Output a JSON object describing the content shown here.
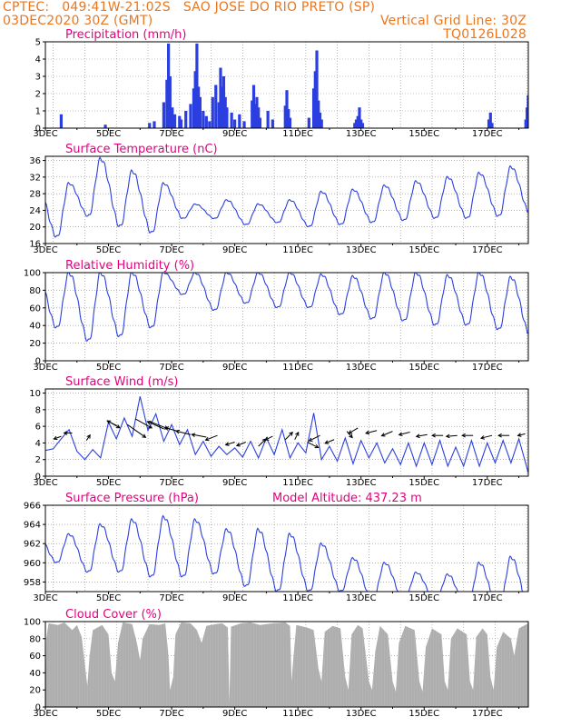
{
  "header": {
    "line1": "CPTEC:   049:41W-21:02S   SAO JOSE DO RIO PRETO (SP)",
    "line2": "03DEC2020 30Z (GMT)",
    "grid_note": "Vertical Grid Line: 30Z",
    "code": "TQ0126L028"
  },
  "colors": {
    "header": "#e87722",
    "title": "#e6007e",
    "line": "#2b3fe0",
    "cloud": "#a9a9a9"
  },
  "x_labels": [
    "3DEC",
    "5DEC",
    "7DEC",
    "9DEC",
    "11DEC",
    "13DEC",
    "15DEC",
    "17DEC"
  ],
  "chart_data": [
    {
      "type": "bar",
      "title": "Precipitation (mm/h)",
      "ylim": [
        0,
        5
      ],
      "yticks": [
        0,
        1,
        2,
        3,
        4,
        5
      ],
      "x_range_days": [
        3,
        18.3
      ],
      "bars": [
        [
          3.5,
          0.8
        ],
        [
          4.9,
          0.2
        ],
        [
          6.3,
          0.3
        ],
        [
          6.45,
          0.4
        ],
        [
          6.75,
          1.5
        ],
        [
          6.85,
          2.8
        ],
        [
          6.9,
          4.9
        ],
        [
          6.95,
          3.0
        ],
        [
          7.02,
          1.2
        ],
        [
          7.1,
          0.8
        ],
        [
          7.25,
          0.7
        ],
        [
          7.3,
          0.5
        ],
        [
          7.45,
          1.0
        ],
        [
          7.6,
          1.4
        ],
        [
          7.7,
          2.3
        ],
        [
          7.75,
          3.3
        ],
        [
          7.8,
          4.9
        ],
        [
          7.85,
          2.4
        ],
        [
          7.9,
          1.8
        ],
        [
          8.0,
          1.0
        ],
        [
          8.1,
          0.7
        ],
        [
          8.2,
          0.4
        ],
        [
          8.3,
          1.8
        ],
        [
          8.4,
          2.5
        ],
        [
          8.5,
          1.5
        ],
        [
          8.55,
          3.5
        ],
        [
          8.6,
          2.4
        ],
        [
          8.65,
          3.0
        ],
        [
          8.7,
          1.8
        ],
        [
          8.75,
          1.2
        ],
        [
          8.9,
          0.9
        ],
        [
          9.0,
          0.5
        ],
        [
          9.15,
          0.8
        ],
        [
          9.3,
          0.4
        ],
        [
          9.55,
          1.6
        ],
        [
          9.6,
          2.5
        ],
        [
          9.65,
          1.4
        ],
        [
          9.7,
          1.8
        ],
        [
          9.75,
          1.2
        ],
        [
          9.8,
          0.6
        ],
        [
          10.05,
          1.0
        ],
        [
          10.2,
          0.5
        ],
        [
          10.6,
          1.3
        ],
        [
          10.65,
          2.2
        ],
        [
          10.7,
          1.1
        ],
        [
          10.75,
          0.6
        ],
        [
          11.35,
          0.6
        ],
        [
          11.5,
          2.3
        ],
        [
          11.55,
          3.3
        ],
        [
          11.6,
          4.5
        ],
        [
          11.65,
          1.6
        ],
        [
          11.7,
          0.9
        ],
        [
          11.75,
          0.5
        ],
        [
          12.8,
          0.3
        ],
        [
          12.85,
          0.5
        ],
        [
          12.9,
          0.7
        ],
        [
          12.95,
          1.2
        ],
        [
          13.0,
          0.5
        ],
        [
          13.05,
          0.3
        ],
        [
          17.05,
          0.5
        ],
        [
          17.1,
          0.9
        ],
        [
          17.15,
          0.3
        ],
        [
          18.22,
          0.5
        ],
        [
          18.26,
          1.2
        ],
        [
          18.3,
          1.9
        ]
      ]
    },
    {
      "type": "line",
      "title": "Surface Temperature (nC)",
      "ylim": [
        16,
        37
      ],
      "yticks": [
        16,
        20,
        24,
        28,
        32,
        36
      ],
      "x_range_days": [
        3,
        18.3
      ],
      "max": [
        30.5,
        36.5,
        33.5,
        30.5,
        25.5,
        26.5,
        25.5,
        26.5,
        28.5,
        29,
        30,
        31,
        32,
        33,
        34.5,
        36.5,
        36.5
      ],
      "min": [
        17.5,
        22.5,
        20,
        18.5,
        22,
        22,
        20.5,
        21,
        20,
        20.5,
        21,
        21.5,
        22,
        22,
        22.5,
        23,
        23
      ]
    },
    {
      "type": "line",
      "title": "Relative Humidity (%)",
      "ylim": [
        0,
        100
      ],
      "yticks": [
        0,
        20,
        40,
        60,
        80,
        100
      ],
      "x_range_days": [
        3,
        18.3
      ],
      "max": [
        100,
        100,
        100,
        100,
        100,
        100,
        100,
        100,
        98,
        96,
        100,
        100,
        97,
        100,
        95,
        100,
        100
      ],
      "min": [
        37,
        22,
        27,
        37,
        75,
        57,
        65,
        60,
        60,
        52,
        47,
        45,
        40,
        40,
        35,
        28,
        28
      ]
    },
    {
      "type": "line",
      "title": "Surface Wind (m/s)",
      "ylim": [
        0,
        10.5
      ],
      "yticks": [
        0,
        2,
        4,
        6,
        8,
        10
      ],
      "x_range_days": [
        3,
        18.3
      ],
      "values": [
        [
          3.0,
          3.1
        ],
        [
          3.25,
          3.3
        ],
        [
          3.5,
          4.5
        ],
        [
          3.75,
          5.6
        ],
        [
          4.0,
          3.0
        ],
        [
          4.25,
          2.0
        ],
        [
          4.5,
          3.2
        ],
        [
          4.75,
          2.2
        ],
        [
          5.0,
          6.5
        ],
        [
          5.25,
          4.5
        ],
        [
          5.5,
          7.0
        ],
        [
          5.75,
          4.8
        ],
        [
          6.0,
          9.6
        ],
        [
          6.25,
          5.5
        ],
        [
          6.5,
          7.5
        ],
        [
          6.75,
          4.2
        ],
        [
          7.0,
          6.2
        ],
        [
          7.25,
          3.8
        ],
        [
          7.5,
          5.6
        ],
        [
          7.75,
          2.6
        ],
        [
          8.0,
          4.2
        ],
        [
          8.25,
          2.4
        ],
        [
          8.5,
          3.6
        ],
        [
          8.75,
          2.6
        ],
        [
          9.0,
          3.4
        ],
        [
          9.25,
          2.3
        ],
        [
          9.5,
          4.2
        ],
        [
          9.75,
          2.2
        ],
        [
          10.0,
          4.6
        ],
        [
          10.25,
          2.6
        ],
        [
          10.5,
          5.6
        ],
        [
          10.75,
          2.2
        ],
        [
          11.0,
          4.0
        ],
        [
          11.25,
          2.8
        ],
        [
          11.5,
          7.6
        ],
        [
          11.75,
          2.0
        ],
        [
          12.0,
          3.6
        ],
        [
          12.25,
          1.8
        ],
        [
          12.5,
          4.6
        ],
        [
          12.75,
          1.5
        ],
        [
          13.0,
          4.3
        ],
        [
          13.25,
          2.2
        ],
        [
          13.5,
          4.0
        ],
        [
          13.75,
          1.6
        ],
        [
          14.0,
          3.3
        ],
        [
          14.25,
          1.4
        ],
        [
          14.5,
          4.0
        ],
        [
          14.75,
          1.2
        ],
        [
          15.0,
          4.0
        ],
        [
          15.25,
          1.4
        ],
        [
          15.5,
          4.3
        ],
        [
          15.75,
          1.2
        ],
        [
          16.0,
          3.5
        ],
        [
          16.25,
          1.2
        ],
        [
          16.5,
          4.3
        ],
        [
          16.75,
          1.2
        ],
        [
          17.0,
          4.0
        ],
        [
          17.25,
          1.6
        ],
        [
          17.5,
          4.3
        ],
        [
          17.75,
          1.6
        ],
        [
          18.0,
          4.5
        ],
        [
          18.3,
          0.4
        ]
      ],
      "arrows": [
        [
          3.5,
          4.8,
          -8,
          3
        ],
        [
          3.85,
          5.2,
          -9,
          0
        ],
        [
          4.3,
          4.3,
          4,
          -6
        ],
        [
          4.95,
          6.7,
          14,
          8
        ],
        [
          5.25,
          6.1,
          -10,
          -5
        ],
        [
          5.6,
          6.2,
          20,
          14
        ],
        [
          5.85,
          6.9,
          18,
          10
        ],
        [
          6.3,
          6.6,
          20,
          8
        ],
        [
          6.75,
          5.7,
          -18,
          -8
        ],
        [
          7.2,
          5.4,
          -14,
          -4
        ],
        [
          7.6,
          5.0,
          -16,
          -4
        ],
        [
          8.1,
          4.7,
          -16,
          -3
        ],
        [
          8.45,
          4.9,
          -13,
          5
        ],
        [
          9.0,
          4.1,
          -10,
          3
        ],
        [
          9.35,
          4.1,
          -10,
          4
        ],
        [
          9.75,
          3.6,
          8,
          -8
        ],
        [
          10.2,
          4.8,
          -8,
          4
        ],
        [
          10.6,
          4.4,
          8,
          -8
        ],
        [
          10.9,
          4.4,
          4,
          -8
        ],
        [
          11.3,
          4.1,
          12,
          6
        ],
        [
          11.7,
          4.9,
          -12,
          6
        ],
        [
          12.15,
          4.4,
          -10,
          4
        ],
        [
          12.55,
          5.4,
          6,
          7
        ],
        [
          12.9,
          5.8,
          -10,
          6
        ],
        [
          13.5,
          5.5,
          -12,
          3
        ],
        [
          14.0,
          5.4,
          -12,
          5
        ],
        [
          14.55,
          5.3,
          -12,
          3
        ],
        [
          15.1,
          5.0,
          -12,
          2
        ],
        [
          15.6,
          4.9,
          -12,
          0
        ],
        [
          16.05,
          4.9,
          -12,
          1
        ],
        [
          16.55,
          4.9,
          -12,
          0
        ],
        [
          17.15,
          4.9,
          -12,
          3
        ],
        [
          17.7,
          4.9,
          -12,
          0
        ],
        [
          18.2,
          5.1,
          -8,
          2
        ]
      ]
    },
    {
      "type": "line",
      "title": "Surface Pressure (hPa)",
      "subtitle": "Model Altitude: 437.23  m",
      "ylim": [
        957,
        966
      ],
      "yticks": [
        958,
        960,
        962,
        964,
        966
      ],
      "x_range_days": [
        3,
        18.3
      ],
      "max": [
        963,
        964,
        964.5,
        964.8,
        964.5,
        963.5,
        963.5,
        963,
        962,
        960.5,
        960,
        959,
        958.8,
        960,
        960.6,
        959,
        957
      ],
      "min": [
        960,
        959,
        959,
        958.5,
        958.5,
        958.8,
        957.5,
        957,
        957,
        957,
        956,
        956,
        956,
        955,
        955,
        955,
        955
      ]
    },
    {
      "type": "area",
      "title": "Cloud Cover (%)",
      "ylim": [
        0,
        100
      ],
      "yticks": [
        0,
        20,
        40,
        60,
        80,
        100
      ],
      "x_range_days": [
        3,
        18.3
      ],
      "values": [
        [
          3.0,
          5
        ],
        [
          3.03,
          80
        ],
        [
          3.1,
          98
        ],
        [
          3.4,
          96
        ],
        [
          3.6,
          99
        ],
        [
          3.85,
          90
        ],
        [
          4.0,
          96
        ],
        [
          4.15,
          82
        ],
        [
          4.25,
          50
        ],
        [
          4.33,
          25
        ],
        [
          4.4,
          60
        ],
        [
          4.5,
          90
        ],
        [
          4.8,
          96
        ],
        [
          5.0,
          85
        ],
        [
          5.1,
          40
        ],
        [
          5.2,
          30
        ],
        [
          5.3,
          75
        ],
        [
          5.45,
          99
        ],
        [
          5.75,
          97
        ],
        [
          5.9,
          75
        ],
        [
          6.0,
          55
        ],
        [
          6.08,
          80
        ],
        [
          6.3,
          97
        ],
        [
          6.6,
          96
        ],
        [
          6.8,
          98
        ],
        [
          6.9,
          60
        ],
        [
          6.95,
          20
        ],
        [
          7.05,
          35
        ],
        [
          7.12,
          85
        ],
        [
          7.3,
          99
        ],
        [
          7.6,
          98
        ],
        [
          7.8,
          90
        ],
        [
          7.95,
          75
        ],
        [
          8.1,
          95
        ],
        [
          8.4,
          97
        ],
        [
          8.6,
          98
        ],
        [
          8.78,
          93
        ],
        [
          8.83,
          5
        ],
        [
          8.88,
          94
        ],
        [
          9.2,
          98
        ],
        [
          9.5,
          99
        ],
        [
          9.8,
          96
        ],
        [
          10.2,
          98
        ],
        [
          10.6,
          99
        ],
        [
          10.75,
          95
        ],
        [
          10.8,
          30
        ],
        [
          10.85,
          55
        ],
        [
          10.95,
          96
        ],
        [
          11.3,
          93
        ],
        [
          11.5,
          90
        ],
        [
          11.65,
          45
        ],
        [
          11.75,
          30
        ],
        [
          11.85,
          88
        ],
        [
          12.1,
          95
        ],
        [
          12.35,
          92
        ],
        [
          12.5,
          35
        ],
        [
          12.6,
          20
        ],
        [
          12.7,
          85
        ],
        [
          12.9,
          96
        ],
        [
          13.05,
          92
        ],
        [
          13.25,
          30
        ],
        [
          13.35,
          20
        ],
        [
          13.45,
          65
        ],
        [
          13.6,
          95
        ],
        [
          13.85,
          85
        ],
        [
          14.0,
          30
        ],
        [
          14.1,
          18
        ],
        [
          14.2,
          75
        ],
        [
          14.4,
          95
        ],
        [
          14.7,
          90
        ],
        [
          14.85,
          30
        ],
        [
          14.95,
          18
        ],
        [
          15.05,
          70
        ],
        [
          15.25,
          92
        ],
        [
          15.55,
          85
        ],
        [
          15.65,
          30
        ],
        [
          15.75,
          20
        ],
        [
          15.85,
          80
        ],
        [
          16.05,
          92
        ],
        [
          16.35,
          85
        ],
        [
          16.45,
          30
        ],
        [
          16.55,
          20
        ],
        [
          16.65,
          82
        ],
        [
          16.85,
          92
        ],
        [
          17.0,
          85
        ],
        [
          17.1,
          35
        ],
        [
          17.2,
          20
        ],
        [
          17.3,
          70
        ],
        [
          17.5,
          88
        ],
        [
          17.75,
          80
        ],
        [
          17.85,
          60
        ],
        [
          18.0,
          92
        ],
        [
          18.3,
          98
        ]
      ]
    }
  ]
}
